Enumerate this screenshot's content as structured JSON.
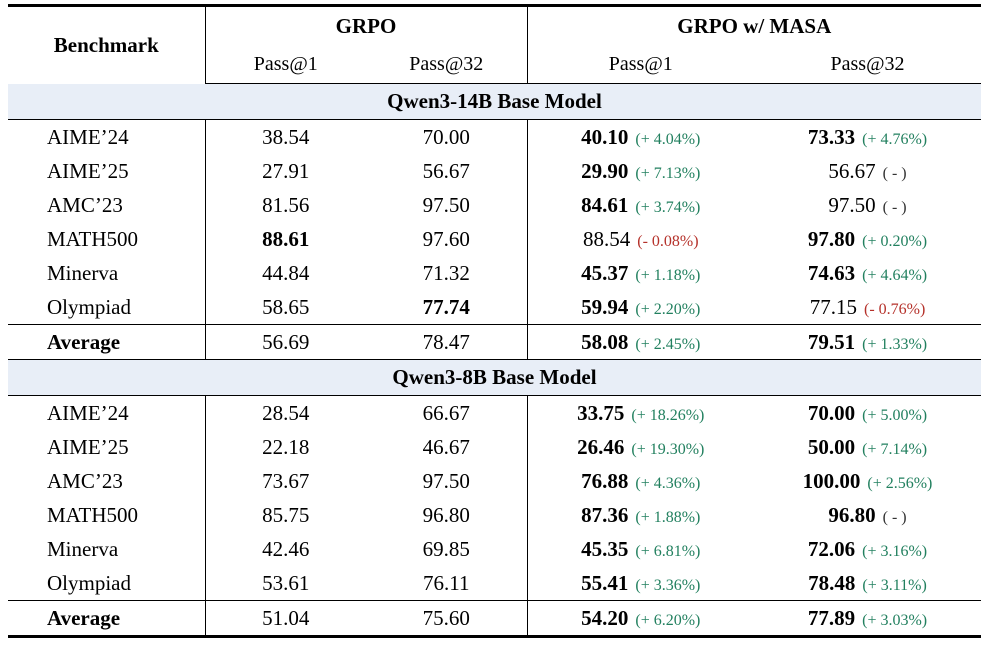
{
  "colors": {
    "positive_delta": "#22805f",
    "negative_delta": "#b5312a",
    "neutral_delta": "#333333",
    "section_row_background": "#e8eef7",
    "rule_color": "#000000"
  },
  "header": {
    "benchmark_label": "Benchmark",
    "groups": [
      {
        "label": "GRPO",
        "sub_columns": [
          "Pass@1",
          "Pass@32"
        ]
      },
      {
        "label": "GRPO w/ MASA",
        "sub_columns": [
          "Pass@1",
          "Pass@32"
        ]
      }
    ]
  },
  "chart_data": {
    "type": "table",
    "title": "Benchmark results: GRPO vs GRPO w/ MASA (Pass@1 / Pass@32)",
    "sections": [
      {
        "title": "Qwen3-14B Base Model",
        "rows": [
          {
            "benchmark": "AIME’24",
            "grpo_p1": {
              "v": "38.54",
              "bold": false
            },
            "grpo_p32": {
              "v": "70.00",
              "bold": false
            },
            "masa_p1": {
              "v": "40.10",
              "bold": true,
              "delta": "(+ 4.04%)",
              "dc": "green"
            },
            "masa_p32": {
              "v": "73.33",
              "bold": true,
              "delta": "(+ 4.76%)",
              "dc": "green"
            }
          },
          {
            "benchmark": "AIME’25",
            "grpo_p1": {
              "v": "27.91",
              "bold": false
            },
            "grpo_p32": {
              "v": "56.67",
              "bold": false
            },
            "masa_p1": {
              "v": "29.90",
              "bold": true,
              "delta": "(+ 7.13%)",
              "dc": "green"
            },
            "masa_p32": {
              "v": "56.67",
              "bold": false,
              "delta": "( - )",
              "dc": "dark"
            }
          },
          {
            "benchmark": "AMC’23",
            "grpo_p1": {
              "v": "81.56",
              "bold": false
            },
            "grpo_p32": {
              "v": "97.50",
              "bold": false
            },
            "masa_p1": {
              "v": "84.61",
              "bold": true,
              "delta": "(+ 3.74%)",
              "dc": "green"
            },
            "masa_p32": {
              "v": "97.50",
              "bold": false,
              "delta": "( - )",
              "dc": "dark"
            }
          },
          {
            "benchmark": "MATH500",
            "grpo_p1": {
              "v": "88.61",
              "bold": true
            },
            "grpo_p32": {
              "v": "97.60",
              "bold": false
            },
            "masa_p1": {
              "v": "88.54",
              "bold": false,
              "delta": "(- 0.08%)",
              "dc": "red"
            },
            "masa_p32": {
              "v": "97.80",
              "bold": true,
              "delta": "(+ 0.20%)",
              "dc": "green"
            }
          },
          {
            "benchmark": "Minerva",
            "grpo_p1": {
              "v": "44.84",
              "bold": false
            },
            "grpo_p32": {
              "v": "71.32",
              "bold": false
            },
            "masa_p1": {
              "v": "45.37",
              "bold": true,
              "delta": "(+ 1.18%)",
              "dc": "green"
            },
            "masa_p32": {
              "v": "74.63",
              "bold": true,
              "delta": "(+ 4.64%)",
              "dc": "green"
            }
          },
          {
            "benchmark": "Olympiad",
            "grpo_p1": {
              "v": "58.65",
              "bold": false
            },
            "grpo_p32": {
              "v": "77.74",
              "bold": true
            },
            "masa_p1": {
              "v": "59.94",
              "bold": true,
              "delta": "(+ 2.20%)",
              "dc": "green"
            },
            "masa_p32": {
              "v": "77.15",
              "bold": false,
              "delta": "(- 0.76%)",
              "dc": "red"
            }
          }
        ],
        "average": {
          "benchmark": "Average",
          "grpo_p1": {
            "v": "56.69",
            "bold": false
          },
          "grpo_p32": {
            "v": "78.47",
            "bold": false
          },
          "masa_p1": {
            "v": "58.08",
            "bold": true,
            "delta": "(+ 2.45%)",
            "dc": "green"
          },
          "masa_p32": {
            "v": "79.51",
            "bold": true,
            "delta": "(+ 1.33%)",
            "dc": "green"
          }
        }
      },
      {
        "title": "Qwen3-8B Base Model",
        "rows": [
          {
            "benchmark": "AIME’24",
            "grpo_p1": {
              "v": "28.54",
              "bold": false
            },
            "grpo_p32": {
              "v": "66.67",
              "bold": false
            },
            "masa_p1": {
              "v": "33.75",
              "bold": true,
              "delta": "(+ 18.26%)",
              "dc": "green"
            },
            "masa_p32": {
              "v": "70.00",
              "bold": true,
              "delta": "(+ 5.00%)",
              "dc": "green"
            }
          },
          {
            "benchmark": "AIME’25",
            "grpo_p1": {
              "v": "22.18",
              "bold": false
            },
            "grpo_p32": {
              "v": "46.67",
              "bold": false
            },
            "masa_p1": {
              "v": "26.46",
              "bold": true,
              "delta": "(+ 19.30%)",
              "dc": "green"
            },
            "masa_p32": {
              "v": "50.00",
              "bold": true,
              "delta": "(+ 7.14%)",
              "dc": "green"
            }
          },
          {
            "benchmark": "AMC’23",
            "grpo_p1": {
              "v": "73.67",
              "bold": false
            },
            "grpo_p32": {
              "v": "97.50",
              "bold": false
            },
            "masa_p1": {
              "v": "76.88",
              "bold": true,
              "delta": "(+ 4.36%)",
              "dc": "green"
            },
            "masa_p32": {
              "v": "100.00",
              "bold": true,
              "delta": "(+ 2.56%)",
              "dc": "green"
            }
          },
          {
            "benchmark": "MATH500",
            "grpo_p1": {
              "v": "85.75",
              "bold": false
            },
            "grpo_p32": {
              "v": "96.80",
              "bold": false
            },
            "masa_p1": {
              "v": "87.36",
              "bold": true,
              "delta": "(+ 1.88%)",
              "dc": "green"
            },
            "masa_p32": {
              "v": "96.80",
              "bold": true,
              "delta": "( - )",
              "dc": "dark"
            }
          },
          {
            "benchmark": "Minerva",
            "grpo_p1": {
              "v": "42.46",
              "bold": false
            },
            "grpo_p32": {
              "v": "69.85",
              "bold": false
            },
            "masa_p1": {
              "v": "45.35",
              "bold": true,
              "delta": "(+ 6.81%)",
              "dc": "green"
            },
            "masa_p32": {
              "v": "72.06",
              "bold": true,
              "delta": "(+ 3.16%)",
              "dc": "green"
            }
          },
          {
            "benchmark": "Olympiad",
            "grpo_p1": {
              "v": "53.61",
              "bold": false
            },
            "grpo_p32": {
              "v": "76.11",
              "bold": false
            },
            "masa_p1": {
              "v": "55.41",
              "bold": true,
              "delta": "(+ 3.36%)",
              "dc": "green"
            },
            "masa_p32": {
              "v": "78.48",
              "bold": true,
              "delta": "(+ 3.11%)",
              "dc": "green"
            }
          }
        ],
        "average": {
          "benchmark": "Average",
          "grpo_p1": {
            "v": "51.04",
            "bold": false
          },
          "grpo_p32": {
            "v": "75.60",
            "bold": false
          },
          "masa_p1": {
            "v": "54.20",
            "bold": true,
            "delta": "(+ 6.20%)",
            "dc": "green"
          },
          "masa_p32": {
            "v": "77.89",
            "bold": true,
            "delta": "(+ 3.03%)",
            "dc": "green"
          }
        }
      }
    ]
  }
}
